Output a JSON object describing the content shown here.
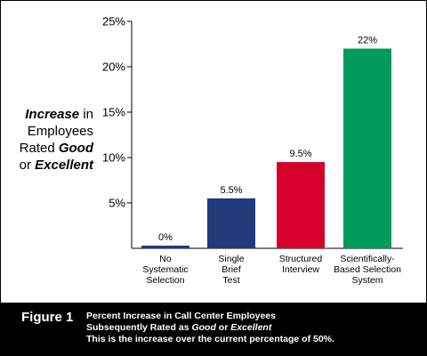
{
  "chart_data": {
    "type": "bar",
    "categories": [
      [
        "No",
        "Systematic",
        "Selection"
      ],
      [
        "Single",
        "Brief",
        "Test"
      ],
      [
        "Structured",
        "Interview"
      ],
      [
        "Scientifically-",
        "Based Selection",
        "System"
      ]
    ],
    "values": [
      0,
      5.5,
      9.5,
      22
    ],
    "data_labels": [
      "0%",
      "5.5%",
      "9.5%",
      "22%"
    ],
    "colors": [
      "#233a7a",
      "#233a7a",
      "#d5002c",
      "#009a5c"
    ],
    "ylim": [
      0,
      25
    ],
    "yticks": [
      5,
      10,
      15,
      20,
      25
    ],
    "ytick_labels": [
      "5%",
      "10%",
      "15%",
      "20%",
      "25%"
    ],
    "ylabel": {
      "line1_em": "Increase",
      "line1_rest": " in",
      "line2": "Employees",
      "line3_pre": "Rated ",
      "line3_em": "Good",
      "line4_pre": "or ",
      "line4_em": "Excellent"
    },
    "grid": false
  },
  "caption": {
    "figure_label": "Figure 1",
    "line1": "Percent Increase in Call Center Employees",
    "line2_pre": "Subsequently Rated as ",
    "line2_em1": "Good",
    "line2_mid": " or ",
    "line2_em2": "Excellent",
    "line3": "This is the increase over the current percentage of 50%."
  }
}
